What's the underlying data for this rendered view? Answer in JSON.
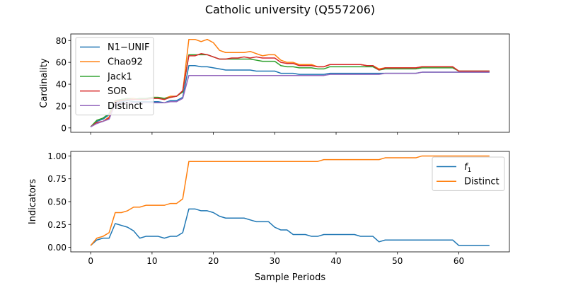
{
  "figure": {
    "title": "Catholic university (Q557206)"
  },
  "chart_data": [
    {
      "type": "line",
      "ylabel": "Cardinality",
      "xlabel": "",
      "xlim": [
        -3.25,
        68.25
      ],
      "ylim": [
        -4,
        86
      ],
      "xticks": [
        0,
        10,
        20,
        30,
        40,
        50,
        60
      ],
      "yticks": [
        0,
        20,
        40,
        60,
        80
      ],
      "ytick_labels": [
        "0",
        "20",
        "40",
        "60",
        "80"
      ],
      "show_xtick_labels": false,
      "grid": false,
      "legend": "upper left",
      "series": [
        {
          "name": "N1−UNIF",
          "color": "#1f77b4",
          "values": [
            1,
            6,
            8,
            12,
            23,
            24,
            25,
            24,
            24,
            24,
            24,
            24,
            23,
            25,
            25,
            28,
            57,
            57,
            56,
            56,
            55,
            54,
            53,
            53,
            53,
            53,
            53,
            52,
            52,
            52,
            52,
            50,
            50,
            50,
            49,
            49,
            49,
            49,
            49,
            50,
            50,
            50,
            50,
            50,
            50,
            50,
            50,
            50,
            50,
            50,
            50,
            50,
            50,
            50,
            51,
            51,
            51,
            51,
            51,
            51,
            51,
            51,
            51,
            51,
            51,
            51
          ]
        },
        {
          "name": "Chao92",
          "color": "#ff7f0e",
          "values": [
            1,
            5,
            6,
            10,
            25,
            26,
            27,
            27,
            26,
            27,
            28,
            28,
            27,
            29,
            29,
            33,
            81,
            81,
            79,
            81,
            78,
            71,
            69,
            69,
            69,
            69,
            70,
            68,
            66,
            67,
            67,
            62,
            60,
            60,
            58,
            58,
            58,
            56,
            56,
            58,
            58,
            58,
            58,
            58,
            58,
            57,
            57,
            54,
            55,
            55,
            55,
            55,
            55,
            55,
            56,
            56,
            56,
            56,
            56,
            56,
            52,
            52,
            52,
            52,
            52,
            52
          ]
        },
        {
          "name": "Jack1",
          "color": "#2ca02c",
          "values": [
            1,
            7,
            9,
            13,
            25,
            26,
            27,
            26,
            27,
            27,
            28,
            28,
            27,
            28,
            29,
            33,
            67,
            67,
            67,
            67,
            65,
            63,
            63,
            63,
            63,
            63,
            63,
            62,
            61,
            61,
            61,
            57,
            56,
            56,
            55,
            55,
            55,
            54,
            54,
            56,
            56,
            56,
            56,
            56,
            56,
            56,
            56,
            53,
            54,
            54,
            54,
            54,
            54,
            54,
            55,
            55,
            55,
            55,
            55,
            55,
            52,
            52,
            52,
            52,
            52,
            52
          ]
        },
        {
          "name": "SOR",
          "color": "#d62728",
          "values": [
            1,
            5,
            6,
            9,
            24,
            25,
            26,
            26,
            26,
            26,
            27,
            27,
            26,
            28,
            29,
            34,
            66,
            66,
            68,
            67,
            65,
            63,
            63,
            64,
            64,
            65,
            64,
            65,
            64,
            64,
            64,
            60,
            59,
            59,
            57,
            57,
            57,
            56,
            56,
            58,
            58,
            58,
            58,
            58,
            58,
            57,
            57,
            53,
            55,
            55,
            55,
            55,
            55,
            55,
            56,
            56,
            56,
            56,
            56,
            56,
            52,
            52,
            52,
            52,
            52,
            52
          ]
        },
        {
          "name": "Distinct",
          "color": "#9467bd",
          "values": [
            1,
            4,
            6,
            8,
            22,
            23,
            23,
            23,
            23,
            23,
            23,
            23,
            23,
            24,
            24,
            27,
            48,
            48,
            48,
            48,
            48,
            48,
            48,
            48,
            48,
            48,
            48,
            48,
            48,
            48,
            48,
            48,
            48,
            48,
            48,
            48,
            48,
            48,
            48,
            49,
            49,
            49,
            49,
            49,
            49,
            49,
            49,
            49,
            50,
            50,
            50,
            50,
            50,
            50,
            51,
            51,
            51,
            51,
            51,
            51,
            51,
            51,
            51,
            51,
            51,
            51
          ]
        }
      ]
    },
    {
      "type": "line",
      "ylabel": "Indicators",
      "xlabel": "Sample Periods",
      "xlim": [
        -3.25,
        68.25
      ],
      "ylim": [
        -0.05,
        1.05
      ],
      "xticks": [
        0,
        10,
        20,
        30,
        40,
        50,
        60
      ],
      "xtick_labels": [
        "0",
        "10",
        "20",
        "30",
        "40",
        "50",
        "60"
      ],
      "yticks": [
        0,
        0.25,
        0.5,
        0.75,
        1.0
      ],
      "ytick_labels": [
        "0.00",
        "0.25",
        "0.50",
        "0.75",
        "1.00"
      ],
      "show_xtick_labels": true,
      "grid": false,
      "legend": "upper right",
      "series": [
        {
          "name": "f₁",
          "color": "#1f77b4",
          "values": [
            0.02,
            0.08,
            0.1,
            0.1,
            0.26,
            0.24,
            0.22,
            0.18,
            0.1,
            0.12,
            0.12,
            0.12,
            0.1,
            0.12,
            0.12,
            0.16,
            0.42,
            0.42,
            0.4,
            0.4,
            0.38,
            0.34,
            0.32,
            0.32,
            0.32,
            0.32,
            0.3,
            0.28,
            0.28,
            0.28,
            0.22,
            0.19,
            0.19,
            0.14,
            0.14,
            0.14,
            0.12,
            0.12,
            0.14,
            0.14,
            0.14,
            0.14,
            0.14,
            0.14,
            0.12,
            0.12,
            0.12,
            0.06,
            0.08,
            0.08,
            0.08,
            0.08,
            0.08,
            0.08,
            0.08,
            0.08,
            0.08,
            0.08,
            0.08,
            0.08,
            0.02,
            0.02,
            0.02,
            0.02,
            0.02,
            0.02
          ]
        },
        {
          "name": "Distinct",
          "color": "#ff7f0e",
          "values": [
            0.02,
            0.1,
            0.12,
            0.16,
            0.38,
            0.38,
            0.4,
            0.44,
            0.44,
            0.46,
            0.46,
            0.46,
            0.46,
            0.48,
            0.48,
            0.53,
            0.94,
            0.94,
            0.94,
            0.94,
            0.94,
            0.94,
            0.94,
            0.94,
            0.94,
            0.94,
            0.94,
            0.94,
            0.94,
            0.94,
            0.94,
            0.94,
            0.94,
            0.94,
            0.94,
            0.94,
            0.94,
            0.94,
            0.96,
            0.96,
            0.96,
            0.96,
            0.96,
            0.96,
            0.96,
            0.96,
            0.96,
            0.96,
            0.98,
            0.98,
            0.98,
            0.98,
            0.98,
            0.98,
            1.0,
            1.0,
            1.0,
            1.0,
            1.0,
            1.0,
            1.0,
            1.0,
            1.0,
            1.0,
            1.0,
            1.0
          ]
        }
      ]
    }
  ]
}
